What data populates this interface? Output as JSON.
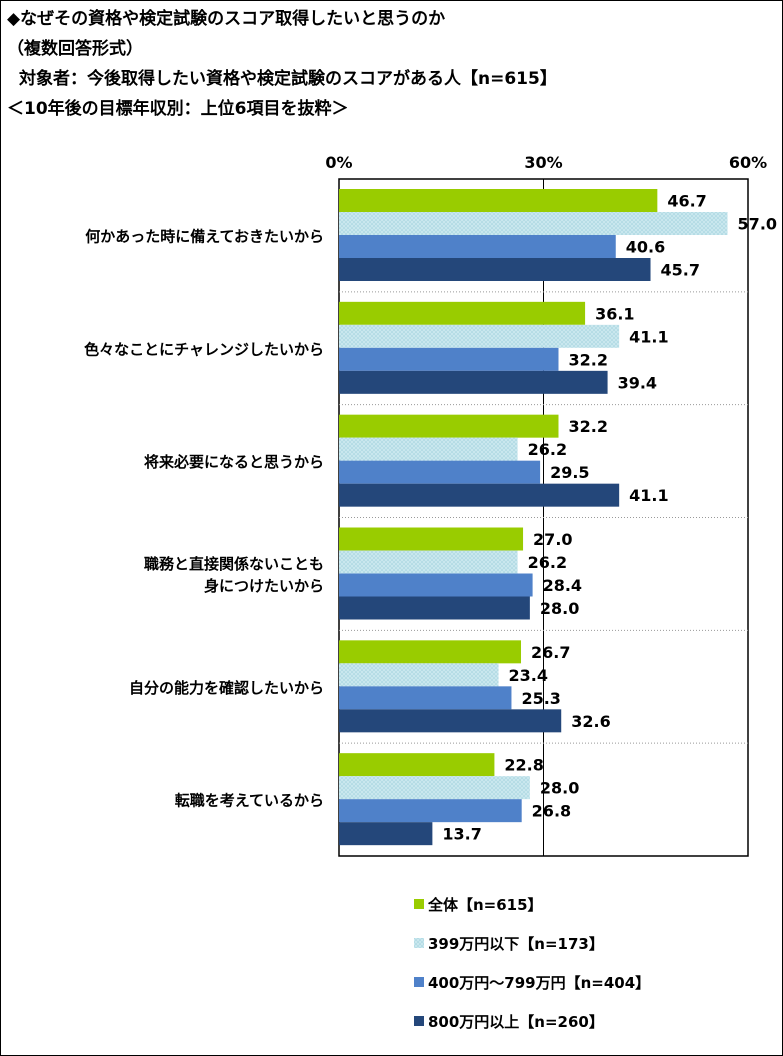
{
  "header": {
    "line1": "◆なぜその資格や検定試験のスコア取得したいと思うのか",
    "line2": "（複数回答形式）",
    "line3": "対象者：今後取得したい資格や検定試験のスコアがある人【n=615】",
    "line4": "＜10年後の目標年収別：上位6項目を抜粋＞"
  },
  "colors": {
    "series0": "#99cc00",
    "series1": "#c4e4ec",
    "series2": "#4f81c9",
    "series3": "#24477a"
  },
  "chart_data": {
    "type": "bar",
    "orientation": "horizontal",
    "xlim": [
      0,
      60
    ],
    "ticks": [
      {
        "value": 0,
        "label": "0%"
      },
      {
        "value": 30,
        "label": "30%"
      },
      {
        "value": 60,
        "label": "60%"
      }
    ],
    "categories": [
      [
        "何かあった時に備えておきたいから"
      ],
      [
        "色々なことにチャレンジしたいから"
      ],
      [
        "将来必要になると思うから"
      ],
      [
        "職務と直接関係ないことも",
        "身につけたいから"
      ],
      [
        "自分の能力を確認したいから"
      ],
      [
        "転職を考えているから"
      ]
    ],
    "series": [
      {
        "name": "全体【n=615】",
        "values": [
          46.7,
          36.1,
          32.2,
          27.0,
          26.7,
          22.8
        ]
      },
      {
        "name": "399万円以下【n=173】",
        "values": [
          57.0,
          41.1,
          26.2,
          26.2,
          23.4,
          28.0
        ]
      },
      {
        "name": "400万円～799万円【n=404】",
        "values": [
          40.6,
          32.2,
          29.5,
          28.4,
          25.3,
          26.8
        ]
      },
      {
        "name": "800万円以上【n=260】",
        "values": [
          45.7,
          39.4,
          41.1,
          28.0,
          32.6,
          13.7
        ]
      }
    ],
    "legend_position": "bottom-right"
  }
}
